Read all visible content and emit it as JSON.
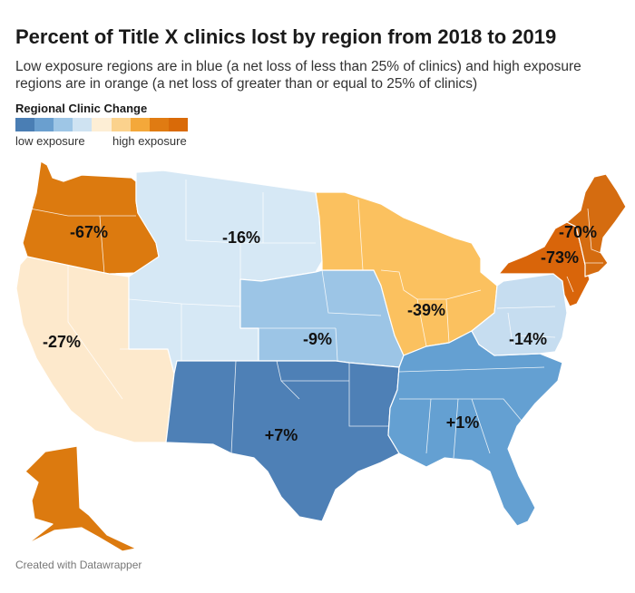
{
  "title": "Percent of Title X clinics lost by region from 2018 to 2019",
  "subtitle": "Low exposure regions are in blue (a net loss of less than 25% of clinics) and high exposure regions are in orange (a net loss of greater than or equal to 25% of clinics)",
  "legend": {
    "title": "Regional Clinic Change",
    "low_label": "low exposure",
    "high_label": "high exposure",
    "gradient": [
      "#4a7eb4",
      "#6a9fcf",
      "#9ec6e6",
      "#cfe3f2",
      "#fdeed5",
      "#fbd28d",
      "#f4a83a",
      "#e07b12",
      "#d96a08"
    ]
  },
  "regions": [
    {
      "id": "region-10",
      "label": "-67%",
      "value": -67,
      "color": "#dc7a0f"
    },
    {
      "id": "region-9",
      "label": "-27%",
      "value": -27,
      "color": "#fde9cc"
    },
    {
      "id": "region-8",
      "label": "-16%",
      "value": -16,
      "color": "#d6e8f5"
    },
    {
      "id": "region-7",
      "label": "-9%",
      "value": -9,
      "color": "#9cc5e6"
    },
    {
      "id": "region-6",
      "label": "+7%",
      "value": 7,
      "color": "#4e80b6"
    },
    {
      "id": "region-5",
      "label": "-39%",
      "value": -39,
      "color": "#fbc15f"
    },
    {
      "id": "region-4",
      "label": "+1%",
      "value": 1,
      "color": "#64a0d2"
    },
    {
      "id": "region-3",
      "label": "-14%",
      "value": -14,
      "color": "#c6ddf0"
    },
    {
      "id": "region-2",
      "label": "-73%",
      "value": -73,
      "color": "#d9650a"
    },
    {
      "id": "region-1",
      "label": "-70%",
      "value": -70,
      "color": "#d56c10"
    }
  ],
  "footer": "Created with Datawrapper"
}
